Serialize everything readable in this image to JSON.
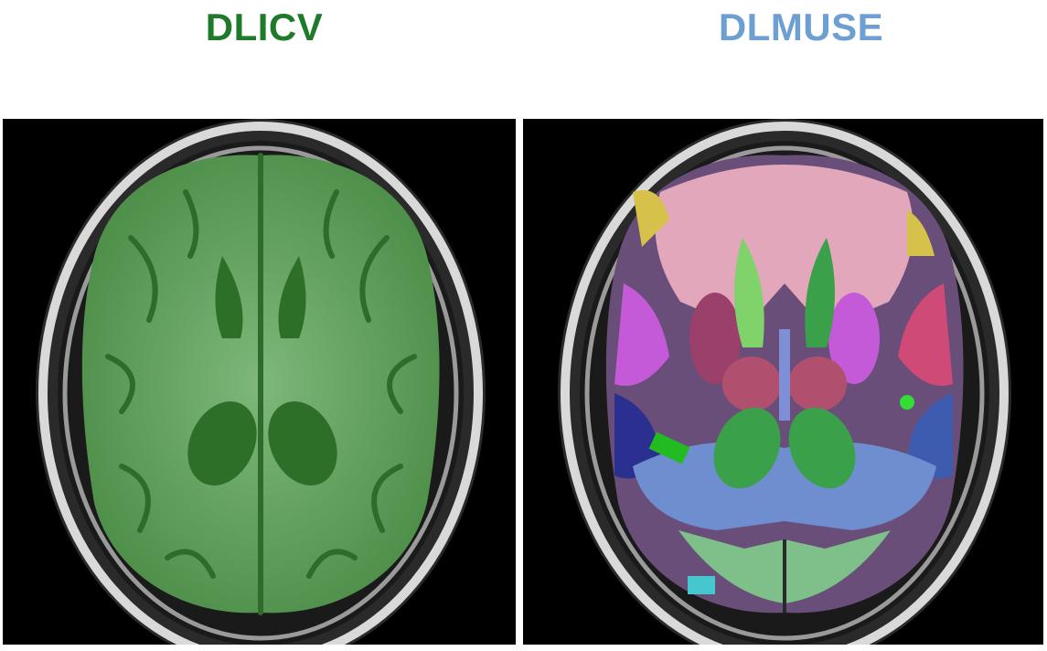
{
  "left_panel": {
    "title": "DLICV",
    "title_color": "#1f7a2a",
    "overlay_color": "#33b233",
    "description_icon": "brain-mri-icv-mask"
  },
  "right_panel": {
    "title": "DLMUSE",
    "title_color": "#6e9fd2",
    "description_icon": "brain-mri-muse-segmentation",
    "segment_colors": [
      "#e8a4b8",
      "#9b3f6b",
      "#3aa04a",
      "#7f8fd6",
      "#2b2f8f",
      "#c45ad8",
      "#d6c14a",
      "#46c7d0",
      "#7fd36a",
      "#d04a78"
    ]
  }
}
